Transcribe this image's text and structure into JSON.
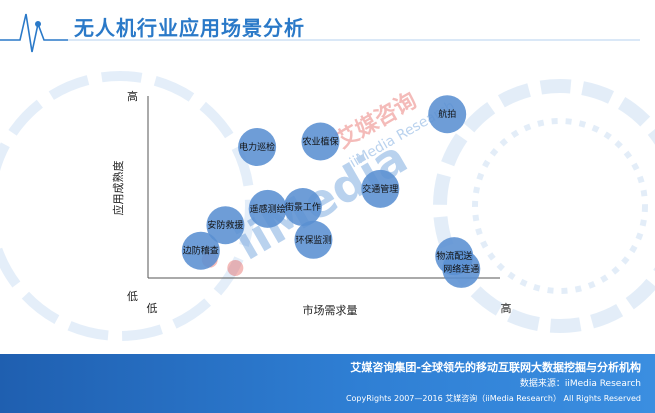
{
  "page": {
    "title": "无人机行业应用场景分析"
  },
  "chart_data": {
    "type": "scatter",
    "xlabel": "市场需求量",
    "ylabel": "应用成熟度",
    "x_ticks": [
      "低",
      "高"
    ],
    "y_ticks": [
      "低",
      "高"
    ],
    "xlim": [
      0,
      10
    ],
    "ylim": [
      0,
      10
    ],
    "points": [
      {
        "label": "航拍",
        "x": 8.5,
        "y": 9.0
      },
      {
        "label": "电力巡检",
        "x": 3.1,
        "y": 7.2
      },
      {
        "label": "农业植保",
        "x": 4.9,
        "y": 7.5
      },
      {
        "label": "交通管理",
        "x": 6.6,
        "y": 4.9
      },
      {
        "label": "遥感测绘",
        "x": 3.4,
        "y": 3.8
      },
      {
        "label": "街景工作",
        "x": 4.4,
        "y": 3.9
      },
      {
        "label": "安防救援",
        "x": 2.2,
        "y": 2.9
      },
      {
        "label": "环保监测",
        "x": 4.7,
        "y": 2.1
      },
      {
        "label": "边防稽查",
        "x": 1.5,
        "y": 1.5
      },
      {
        "label": "物流配送",
        "x": 8.7,
        "y": 1.2
      },
      {
        "label": "网络连通",
        "x": 8.9,
        "y": 0.5
      }
    ],
    "watermark": {
      "brand_cn": "艾媒咨询",
      "brand_en": "iiMedia Research",
      "logo_text": "iiMedia"
    }
  },
  "footer": {
    "slogan": "艾媒咨询集团-全球领先的移动互联网大数据挖掘与分析机构",
    "source": "数据来源：iiMedia Research",
    "copyright": "CopyRights 2007—2016 艾媒咨询（iiMedia Research） All Rights Reserved"
  },
  "colors": {
    "bubble": "#5a8fd2",
    "accent": "#2a79c8",
    "axis": "#555555"
  }
}
